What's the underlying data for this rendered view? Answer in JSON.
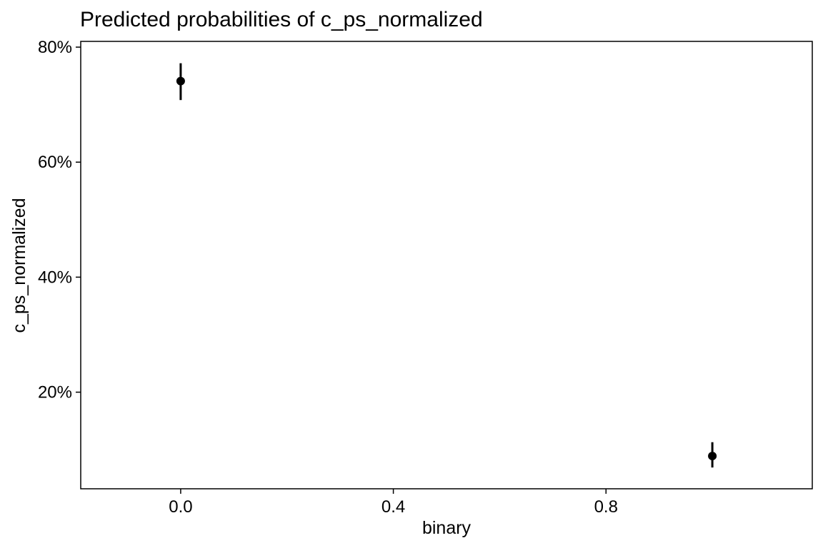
{
  "chart_data": {
    "type": "scatter",
    "title": "Predicted probabilities of c_ps_normalized",
    "xlabel": "binary",
    "ylabel": "c_ps_normalized",
    "xlim": [
      -0.188,
      1.188
    ],
    "ylim": [
      3.2,
      81.0
    ],
    "x_ticks": [
      0.0,
      0.4,
      0.8
    ],
    "x_tick_labels": [
      "0.0",
      "0.4",
      "0.8"
    ],
    "y_ticks": [
      20,
      40,
      60,
      80
    ],
    "y_tick_labels": [
      "20%",
      "40%",
      "60%",
      "80%"
    ],
    "grid": false,
    "legend": "none",
    "colors": {
      "points": "#000000",
      "axes": "#000000",
      "background": "#ffffff"
    },
    "points": [
      {
        "x": 0.0,
        "y": 74.1,
        "ci_low": 70.8,
        "ci_high": 77.2
      },
      {
        "x": 1.0,
        "y": 8.9,
        "ci_low": 6.9,
        "ci_high": 11.3
      }
    ]
  }
}
